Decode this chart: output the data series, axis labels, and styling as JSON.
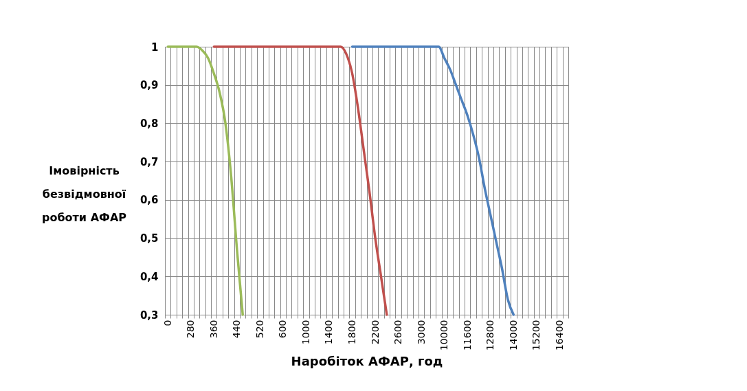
{
  "chart_data": {
    "type": "line",
    "xlabel": "Наробіток АФАР, год",
    "ylabel": "Імовірність безвідмовної роботи АФАР",
    "categories": [
      "0",
      null,
      null,
      null,
      "280",
      null,
      null,
      null,
      "360",
      null,
      null,
      null,
      "440",
      null,
      null,
      null,
      "520",
      null,
      null,
      null,
      "600",
      null,
      null,
      null,
      "1000",
      null,
      null,
      null,
      "1400",
      null,
      null,
      null,
      "1800",
      null,
      null,
      null,
      "2200",
      null,
      null,
      null,
      "2600",
      null,
      null,
      null,
      "3000",
      null,
      null,
      null,
      "10000",
      null,
      null,
      null,
      "11600",
      null,
      null,
      null,
      "12800",
      null,
      null,
      null,
      "14000",
      null,
      null,
      null,
      "15200",
      null,
      null,
      null,
      "16400",
      null
    ],
    "series": [
      {
        "color": "#4f81bd",
        "values": [
          null,
          null,
          null,
          null,
          null,
          null,
          null,
          null,
          null,
          null,
          null,
          null,
          null,
          null,
          null,
          null,
          null,
          null,
          null,
          null,
          null,
          null,
          null,
          null,
          null,
          null,
          null,
          null,
          null,
          null,
          null,
          null,
          1,
          1,
          1,
          1,
          1,
          1,
          1,
          1,
          1,
          1,
          1,
          1,
          1,
          1,
          1,
          1,
          0.97,
          0.94,
          0.9,
          0.86,
          0.82,
          0.77,
          0.71,
          0.63,
          0.56,
          0.49,
          0.42,
          0.34,
          0.3,
          null,
          null,
          null,
          null,
          null,
          null,
          null,
          null,
          null
        ]
      },
      {
        "color": "#c0504d",
        "values": [
          null,
          null,
          null,
          null,
          null,
          null,
          null,
          null,
          1,
          1,
          1,
          1,
          1,
          1,
          1,
          1,
          1,
          1,
          1,
          1,
          1,
          1,
          1,
          1,
          1,
          1,
          1,
          1,
          1,
          1,
          1,
          0.98,
          0.93,
          0.84,
          0.73,
          0.62,
          0.5,
          0.4,
          0.3,
          null,
          null,
          null,
          null,
          null,
          null,
          null,
          null,
          null,
          null,
          null,
          null,
          null,
          null,
          null,
          null,
          null,
          null,
          null,
          null,
          null,
          null,
          null,
          null,
          null,
          null,
          null,
          null,
          null,
          null,
          null
        ]
      },
      {
        "color": "#9bbb59",
        "values": [
          1,
          1,
          1,
          1,
          1,
          1,
          0.99,
          0.97,
          0.93,
          0.88,
          0.8,
          0.66,
          0.47,
          0.3,
          null,
          null,
          null,
          null,
          null,
          null,
          null,
          null,
          null,
          null,
          null,
          null,
          null,
          null,
          null,
          null,
          null,
          null,
          null,
          null,
          null,
          null,
          null,
          null,
          null,
          null,
          null,
          null,
          null,
          null,
          null,
          null,
          null,
          null,
          null,
          null,
          null,
          null,
          null,
          null,
          null,
          null,
          null,
          null,
          null,
          null,
          null,
          null,
          null,
          null,
          null,
          null,
          null,
          null,
          null,
          null
        ]
      }
    ],
    "ylim": [
      0.3,
      1
    ],
    "yticks": [
      {
        "value": 0.3,
        "label": "0,3"
      },
      {
        "value": 0.4,
        "label": "0,4"
      },
      {
        "value": 0.5,
        "label": "0,5"
      },
      {
        "value": 0.6,
        "label": "0,6"
      },
      {
        "value": 0.7,
        "label": "0,7"
      },
      {
        "value": 0.8,
        "label": "0,8"
      },
      {
        "value": 0.9,
        "label": "0,9"
      },
      1
    ],
    "grid": true,
    "legend": false,
    "marker": "none",
    "line_style": "solid"
  }
}
